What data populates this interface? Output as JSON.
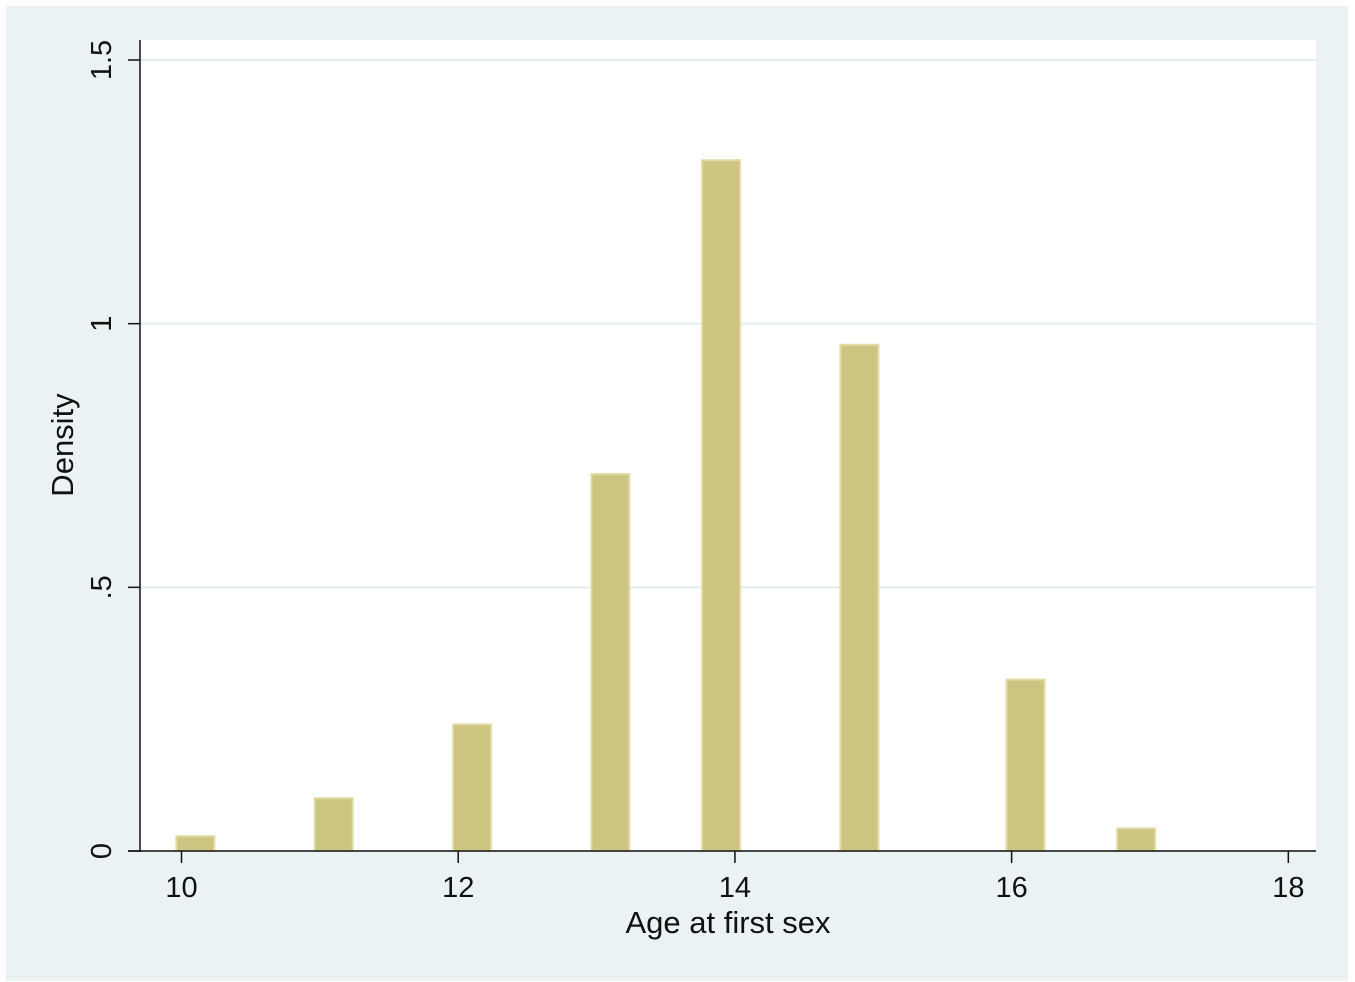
{
  "chart_data": {
    "type": "bar",
    "title": "",
    "xlabel": "Age at first sex",
    "ylabel": "Density",
    "x": [
      10.1,
      11.1,
      12.1,
      13.1,
      13.9,
      14.9,
      16.1,
      16.9
    ],
    "values": [
      0.028,
      0.1,
      0.24,
      0.715,
      1.31,
      0.96,
      0.325,
      0.043
    ],
    "xlim": [
      9.7,
      18.2
    ],
    "ylim": [
      0,
      1.5
    ],
    "xticks": [
      10,
      12,
      14,
      16,
      18
    ],
    "xtick_labels": [
      "10",
      "12",
      "14",
      "16",
      "18"
    ],
    "yticks": [
      0,
      0.5,
      1,
      1.5
    ],
    "ytick_labels": [
      "0",
      ".5",
      "1",
      "1.5"
    ],
    "grid": true,
    "bar_color": "#cdc482",
    "bar_edge_color": "#e3dba6",
    "plot_background": "#ffffff",
    "outer_background": "#eaf2f3",
    "grid_color": "#e4ecee"
  }
}
